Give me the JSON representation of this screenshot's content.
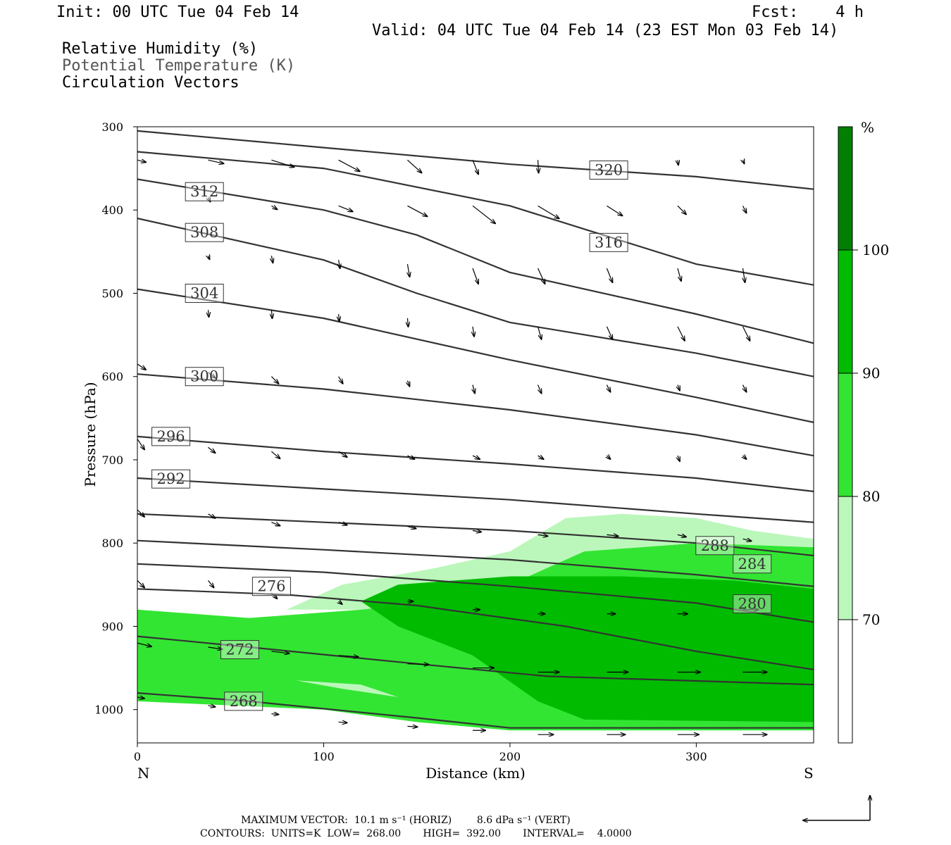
{
  "header": {
    "init": "Init: 00 UTC Tue 04 Feb 14",
    "fcst": "Fcst:    4 h",
    "valid": "Valid: 04 UTC Tue 04 Feb 14 (23 EST Mon 03 Feb 14)",
    "field1": "Relative Humidity (%)",
    "field2": "Potential Temperature (K)",
    "field3": "Circulation Vectors",
    "field2_color": "#555555"
  },
  "chart_data": {
    "type": "cross-section",
    "xlabel": "Distance (km)",
    "ylabel": "Pressure (hPa)",
    "xlim": [
      0,
      363
    ],
    "ylim": [
      1040,
      300
    ],
    "x_ticks": [
      0,
      100,
      200,
      300
    ],
    "y_ticks": [
      300,
      400,
      500,
      600,
      700,
      800,
      900,
      1000
    ],
    "x_end_labels": {
      "left": "N",
      "right": "S"
    },
    "colorbar": {
      "unit": "%",
      "levels": [
        70,
        80,
        90,
        100
      ],
      "colors": [
        "#ffffff",
        "#bbf7bb",
        "#33e533",
        "#00bb00",
        "#007f00"
      ]
    },
    "theta_contours": [
      {
        "value": 268,
        "points": [
          [
            0,
            980
          ],
          [
            60,
            990
          ],
          [
            150,
            1010
          ],
          [
            200,
            1022
          ],
          [
            363,
            1022
          ]
        ],
        "label_at": [
          57,
          990
        ]
      },
      {
        "value": 272,
        "points": [
          [
            0,
            912
          ],
          [
            60,
            925
          ],
          [
            150,
            945
          ],
          [
            220,
            960
          ],
          [
            363,
            970
          ]
        ],
        "label_at": [
          55,
          928
        ]
      },
      {
        "value": 276,
        "points": [
          [
            0,
            855
          ],
          [
            80,
            862
          ],
          [
            150,
            875
          ],
          [
            230,
            900
          ],
          [
            300,
            930
          ],
          [
            363,
            952
          ]
        ],
        "label_at": [
          72,
          852
        ]
      },
      {
        "value": 280,
        "points": [
          [
            0,
            825
          ],
          [
            100,
            835
          ],
          [
            200,
            852
          ],
          [
            300,
            872
          ],
          [
            363,
            895
          ]
        ],
        "label_at": [
          330,
          873
        ]
      },
      {
        "value": 284,
        "points": [
          [
            0,
            797
          ],
          [
            100,
            808
          ],
          [
            200,
            820
          ],
          [
            300,
            838
          ],
          [
            363,
            852
          ]
        ],
        "label_at": [
          330,
          825
        ]
      },
      {
        "value": 288,
        "points": [
          [
            0,
            765
          ],
          [
            100,
            775
          ],
          [
            200,
            785
          ],
          [
            300,
            800
          ],
          [
            363,
            815
          ]
        ],
        "label_at": [
          310,
          803
        ]
      },
      {
        "value": 292,
        "points": [
          [
            0,
            722
          ],
          [
            100,
            735
          ],
          [
            200,
            748
          ],
          [
            300,
            765
          ],
          [
            363,
            775
          ]
        ],
        "label_at": [
          18,
          723
        ]
      },
      {
        "value": 296,
        "points": [
          [
            0,
            672
          ],
          [
            100,
            690
          ],
          [
            200,
            705
          ],
          [
            300,
            722
          ],
          [
            363,
            738
          ]
        ],
        "label_at": [
          18,
          672
        ]
      },
      {
        "value": 300,
        "points": [
          [
            0,
            597
          ],
          [
            100,
            615
          ],
          [
            200,
            640
          ],
          [
            300,
            670
          ],
          [
            363,
            695
          ]
        ],
        "label_at": [
          36,
          600
        ]
      },
      {
        "value": 304,
        "points": [
          [
            0,
            495
          ],
          [
            100,
            530
          ],
          [
            200,
            580
          ],
          [
            300,
            625
          ],
          [
            363,
            655
          ]
        ],
        "label_at": [
          36,
          500
        ]
      },
      {
        "value": 308,
        "points": [
          [
            0,
            410
          ],
          [
            100,
            460
          ],
          [
            150,
            500
          ],
          [
            200,
            535
          ],
          [
            300,
            572
          ],
          [
            363,
            600
          ]
        ],
        "label_at": [
          36,
          427
        ]
      },
      {
        "value": 312,
        "points": [
          [
            0,
            363
          ],
          [
            100,
            400
          ],
          [
            150,
            430
          ],
          [
            200,
            475
          ],
          [
            300,
            525
          ],
          [
            363,
            560
          ]
        ],
        "label_at": [
          36,
          378
        ]
      },
      {
        "value": 316,
        "points": [
          [
            0,
            330
          ],
          [
            100,
            350
          ],
          [
            200,
            395
          ],
          [
            300,
            465
          ],
          [
            363,
            490
          ]
        ],
        "label_at": [
          253,
          439
        ]
      },
      {
        "value": 320,
        "points": [
          [
            0,
            305
          ],
          [
            100,
            325
          ],
          [
            200,
            345
          ],
          [
            300,
            360
          ],
          [
            363,
            375
          ]
        ],
        "label_at": [
          253,
          352
        ]
      }
    ],
    "rh_regions": [
      {
        "level": 80,
        "points": [
          [
            0,
            880
          ],
          [
            60,
            890
          ],
          [
            120,
            880
          ],
          [
            160,
            870
          ],
          [
            200,
            850
          ],
          [
            220,
            825
          ],
          [
            240,
            810
          ],
          [
            300,
            800
          ],
          [
            363,
            805
          ],
          [
            363,
            1025
          ],
          [
            200,
            1025
          ],
          [
            150,
            1015
          ],
          [
            100,
            1000
          ],
          [
            0,
            990
          ]
        ]
      },
      {
        "level": 70,
        "points": [
          [
            80,
            880
          ],
          [
            110,
            850
          ],
          [
            160,
            830
          ],
          [
            200,
            810
          ],
          [
            230,
            770
          ],
          [
            260,
            765
          ],
          [
            300,
            770
          ],
          [
            330,
            785
          ],
          [
            363,
            795
          ],
          [
            363,
            805
          ],
          [
            300,
            800
          ],
          [
            240,
            810
          ],
          [
            200,
            850
          ],
          [
            160,
            870
          ],
          [
            120,
            880
          ]
        ]
      },
      {
        "level": 90,
        "points": [
          [
            120,
            870
          ],
          [
            140,
            850
          ],
          [
            200,
            840
          ],
          [
            260,
            840
          ],
          [
            320,
            845
          ],
          [
            363,
            855
          ],
          [
            363,
            1015
          ],
          [
            240,
            1012
          ],
          [
            215,
            990
          ],
          [
            180,
            935
          ],
          [
            140,
            900
          ]
        ]
      },
      {
        "level": 70,
        "points": [
          [
            85,
            965
          ],
          [
            110,
            975
          ],
          [
            140,
            985
          ],
          [
            120,
            970
          ]
        ]
      }
    ],
    "level_labels": {
      "268": "268",
      "272": "272",
      "276": "276",
      "280": "280",
      "284": "284",
      "288": "288",
      "292": "292",
      "296": "296",
      "300": "300",
      "304": "304",
      "308": "308",
      "312": "312",
      "316": "316",
      "320": "320"
    },
    "vectors": [
      [
        0,
        340,
        12,
        3
      ],
      [
        38,
        340,
        22,
        5
      ],
      [
        72,
        340,
        32,
        10
      ],
      [
        108,
        340,
        30,
        16
      ],
      [
        145,
        340,
        20,
        18
      ],
      [
        180,
        340,
        8,
        20
      ],
      [
        215,
        340,
        1,
        18
      ],
      [
        290,
        340,
        1,
        7
      ],
      [
        325,
        340,
        2,
        5
      ],
      [
        38,
        385,
        3,
        6
      ],
      [
        72,
        395,
        8,
        5
      ],
      [
        108,
        395,
        20,
        8
      ],
      [
        145,
        395,
        28,
        15
      ],
      [
        180,
        395,
        32,
        25
      ],
      [
        215,
        395,
        30,
        18
      ],
      [
        252,
        395,
        22,
        14
      ],
      [
        290,
        395,
        12,
        12
      ],
      [
        325,
        395,
        5,
        10
      ],
      [
        38,
        455,
        2,
        5
      ],
      [
        72,
        455,
        2,
        10
      ],
      [
        108,
        460,
        2,
        12
      ],
      [
        145,
        465,
        3,
        18
      ],
      [
        180,
        470,
        8,
        22
      ],
      [
        215,
        470,
        10,
        22
      ],
      [
        252,
        470,
        8,
        20
      ],
      [
        290,
        470,
        5,
        18
      ],
      [
        325,
        470,
        3,
        20
      ],
      [
        38,
        520,
        1,
        10
      ],
      [
        72,
        520,
        1,
        12
      ],
      [
        108,
        525,
        1,
        10
      ],
      [
        145,
        530,
        1,
        12
      ],
      [
        180,
        540,
        2,
        14
      ],
      [
        215,
        540,
        5,
        18
      ],
      [
        252,
        540,
        8,
        18
      ],
      [
        290,
        540,
        10,
        20
      ],
      [
        325,
        540,
        10,
        20
      ],
      [
        0,
        585,
        12,
        8
      ],
      [
        38,
        595,
        10,
        8
      ],
      [
        72,
        600,
        10,
        10
      ],
      [
        108,
        600,
        6,
        10
      ],
      [
        145,
        605,
        3,
        8
      ],
      [
        180,
        610,
        3,
        12
      ],
      [
        215,
        610,
        5,
        12
      ],
      [
        252,
        610,
        5,
        10
      ],
      [
        290,
        610,
        3,
        8
      ],
      [
        325,
        610,
        5,
        10
      ],
      [
        0,
        675,
        10,
        15
      ],
      [
        38,
        685,
        10,
        8
      ],
      [
        72,
        690,
        12,
        10
      ],
      [
        108,
        690,
        12,
        8
      ],
      [
        145,
        695,
        10,
        5
      ],
      [
        180,
        695,
        10,
        5
      ],
      [
        215,
        695,
        8,
        5
      ],
      [
        252,
        695,
        5,
        5
      ],
      [
        290,
        695,
        3,
        8
      ],
      [
        325,
        695,
        5,
        5
      ],
      [
        0,
        760,
        10,
        10
      ],
      [
        38,
        765,
        10,
        6
      ],
      [
        72,
        775,
        12,
        5
      ],
      [
        108,
        775,
        12,
        4
      ],
      [
        145,
        780,
        12,
        3
      ],
      [
        180,
        785,
        12,
        2
      ],
      [
        215,
        790,
        14,
        2
      ],
      [
        252,
        790,
        16,
        2
      ],
      [
        290,
        790,
        12,
        3
      ],
      [
        325,
        795,
        12,
        3
      ],
      [
        0,
        845,
        10,
        10
      ],
      [
        38,
        845,
        8,
        10
      ],
      [
        72,
        860,
        8,
        8
      ],
      [
        108,
        870,
        5,
        4
      ],
      [
        145,
        870,
        8,
        0
      ],
      [
        180,
        880,
        10,
        0
      ],
      [
        215,
        885,
        10,
        0
      ],
      [
        252,
        885,
        12,
        0
      ],
      [
        290,
        885,
        14,
        0
      ],
      [
        325,
        880,
        22,
        0
      ],
      [
        0,
        920,
        20,
        5
      ],
      [
        38,
        925,
        20,
        3
      ],
      [
        72,
        930,
        25,
        3
      ],
      [
        108,
        935,
        28,
        2
      ],
      [
        145,
        945,
        30,
        1
      ],
      [
        180,
        950,
        30,
        0
      ],
      [
        215,
        955,
        30,
        0
      ],
      [
        252,
        955,
        30,
        0
      ],
      [
        290,
        955,
        32,
        0
      ],
      [
        325,
        955,
        34,
        0
      ],
      [
        0,
        985,
        10,
        2
      ],
      [
        38,
        995,
        10,
        2
      ],
      [
        72,
        1005,
        10,
        1
      ],
      [
        108,
        1015,
        12,
        1
      ],
      [
        145,
        1020,
        14,
        1
      ],
      [
        180,
        1025,
        18,
        0
      ],
      [
        215,
        1030,
        22,
        0
      ],
      [
        252,
        1030,
        26,
        0
      ],
      [
        290,
        1030,
        30,
        0
      ],
      [
        325,
        1030,
        34,
        0
      ]
    ]
  },
  "footer": {
    "max_vector": "MAXIMUM VECTOR:  10.1 m s⁻¹ (HORIZ)        8.6 dPa s⁻¹ (VERT)",
    "contours": "CONTOURS:  UNITS=K  LOW=  268.00       HIGH=  392.00       INTERVAL=    4.0000"
  }
}
